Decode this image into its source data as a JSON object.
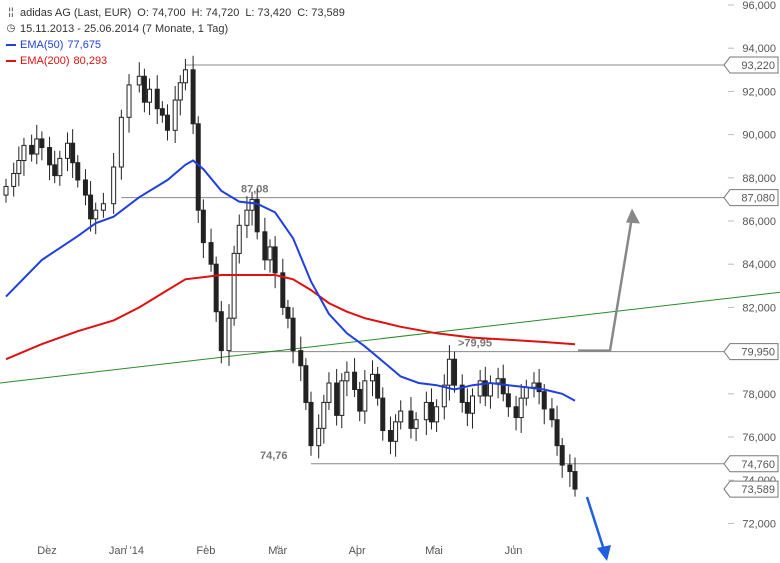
{
  "legend": {
    "instrument": "adidas AG (Last, EUR)",
    "open": "O: 74,700",
    "high": "H: 74,720",
    "low": "L: 73,420",
    "close": "C: 73,589",
    "period": "15.11.2013 - 25.06.2014 (7 Monate, 1 Tag)",
    "ema50_label": "EMA(50)",
    "ema50_value": "77,675",
    "ema200_label": "EMA(200)",
    "ema200_value": "80,293"
  },
  "colors": {
    "candle": "#222222",
    "ema50": "#1f3fe0",
    "ema200": "#e01010",
    "trend": "#2a8a2a",
    "hline": "#888888",
    "up_arrow": "#888888",
    "down_arrow": "#1f5fe0"
  },
  "chart_data": {
    "type": "candlestick",
    "y_axis": {
      "min": 71,
      "max": 96,
      "ticks": [
        72,
        74,
        76,
        78,
        80,
        82,
        84,
        86,
        88,
        90,
        92,
        94,
        96
      ],
      "tick_labels": [
        "72,000",
        "74,000",
        "76,000",
        "78,000",
        "80,000",
        "82,000",
        "84,000",
        "86,000",
        "88,000",
        "90,000",
        "92,000",
        "94,000",
        "96,000"
      ],
      "position": "right"
    },
    "x_axis": {
      "start": "2013-11-15",
      "end": "2014-06-25",
      "labels": [
        {
          "text": "Dez",
          "date": "2013-12-01"
        },
        {
          "text": "Jan '14",
          "date": "2014-01-01"
        },
        {
          "text": "Feb",
          "date": "2014-02-01"
        },
        {
          "text": "Mär",
          "date": "2014-03-01"
        },
        {
          "text": "Apr",
          "date": "2014-04-01"
        },
        {
          "text": "Mai",
          "date": "2014-05-01"
        },
        {
          "text": "Jun",
          "date": "2014-06-01"
        }
      ]
    },
    "close_series": [
      [
        "2013-11-15",
        87.6
      ],
      [
        "2013-11-18",
        88.2
      ],
      [
        "2013-11-20",
        88.8
      ],
      [
        "2013-11-22",
        89.5
      ],
      [
        "2013-11-25",
        89.1
      ],
      [
        "2013-11-27",
        89.8
      ],
      [
        "2013-11-29",
        89.4
      ],
      [
        "2013-12-02",
        88.6
      ],
      [
        "2013-12-04",
        88.1
      ],
      [
        "2013-12-06",
        88.9
      ],
      [
        "2013-12-09",
        89.6
      ],
      [
        "2013-12-11",
        88.7
      ],
      [
        "2013-12-13",
        87.9
      ],
      [
        "2013-12-16",
        87.2
      ],
      [
        "2013-12-18",
        86.1
      ],
      [
        "2013-12-20",
        86.5
      ],
      [
        "2013-12-23",
        86.8
      ],
      [
        "2013-12-27",
        88.5
      ],
      [
        "2013-12-30",
        90.8
      ],
      [
        "2014-01-02",
        92.3
      ],
      [
        "2014-01-06",
        92.7
      ],
      [
        "2014-01-08",
        91.5
      ],
      [
        "2014-01-10",
        92.1
      ],
      [
        "2014-01-13",
        91.2
      ],
      [
        "2014-01-15",
        90.9
      ],
      [
        "2014-01-17",
        90.2
      ],
      [
        "2014-01-20",
        91.6
      ],
      [
        "2014-01-22",
        92.4
      ],
      [
        "2014-01-24",
        93.0
      ],
      [
        "2014-01-27",
        90.5
      ],
      [
        "2014-01-29",
        86.5
      ],
      [
        "2014-01-31",
        85.0
      ],
      [
        "2014-02-03",
        84.0
      ],
      [
        "2014-02-05",
        81.8
      ],
      [
        "2014-02-07",
        80.0
      ],
      [
        "2014-02-10",
        81.5
      ],
      [
        "2014-02-12",
        84.5
      ],
      [
        "2014-02-14",
        85.8
      ],
      [
        "2014-02-17",
        86.5
      ],
      [
        "2014-02-19",
        87.0
      ],
      [
        "2014-02-21",
        85.5
      ],
      [
        "2014-02-24",
        84.2
      ],
      [
        "2014-02-26",
        84.8
      ],
      [
        "2014-02-28",
        83.6
      ],
      [
        "2014-03-03",
        82.0
      ],
      [
        "2014-03-05",
        81.5
      ],
      [
        "2014-03-07",
        80.0
      ],
      [
        "2014-03-10",
        79.3
      ],
      [
        "2014-03-12",
        77.6
      ],
      [
        "2014-03-14",
        75.6
      ],
      [
        "2014-03-17",
        76.4
      ],
      [
        "2014-03-19",
        77.6
      ],
      [
        "2014-03-21",
        78.5
      ],
      [
        "2014-03-24",
        77.0
      ],
      [
        "2014-03-26",
        78.6
      ],
      [
        "2014-03-28",
        79.0
      ],
      [
        "2014-03-31",
        78.2
      ],
      [
        "2014-04-02",
        77.2
      ],
      [
        "2014-04-04",
        78.6
      ],
      [
        "2014-04-07",
        78.9
      ],
      [
        "2014-04-09",
        77.8
      ],
      [
        "2014-04-11",
        76.3
      ],
      [
        "2014-04-14",
        75.8
      ],
      [
        "2014-04-16",
        76.7
      ],
      [
        "2014-04-18",
        77.2
      ],
      [
        "2014-04-22",
        76.4
      ],
      [
        "2014-04-24",
        76.8
      ],
      [
        "2014-04-28",
        77.6
      ],
      [
        "2014-04-30",
        76.7
      ],
      [
        "2014-05-02",
        77.4
      ],
      [
        "2014-05-05",
        78.4
      ],
      [
        "2014-05-07",
        79.6
      ],
      [
        "2014-05-09",
        78.4
      ],
      [
        "2014-05-12",
        77.6
      ],
      [
        "2014-05-14",
        77.1
      ],
      [
        "2014-05-16",
        77.9
      ],
      [
        "2014-05-19",
        78.6
      ],
      [
        "2014-05-21",
        77.9
      ],
      [
        "2014-05-23",
        78.5
      ],
      [
        "2014-05-26",
        78.7
      ],
      [
        "2014-05-28",
        78.0
      ],
      [
        "2014-05-30",
        77.4
      ],
      [
        "2014-06-02",
        76.9
      ],
      [
        "2014-06-04",
        77.8
      ],
      [
        "2014-06-06",
        78.3
      ],
      [
        "2014-06-09",
        78.5
      ],
      [
        "2014-06-11",
        78.1
      ],
      [
        "2014-06-13",
        77.3
      ],
      [
        "2014-06-16",
        76.8
      ],
      [
        "2014-06-18",
        75.6
      ],
      [
        "2014-06-20",
        74.7
      ],
      [
        "2014-06-23",
        74.4
      ],
      [
        "2014-06-25",
        73.589
      ]
    ],
    "ema50": [
      [
        "2013-11-15",
        82.5
      ],
      [
        "2013-11-29",
        84.2
      ],
      [
        "2013-12-13",
        85.3
      ],
      [
        "2013-12-20",
        85.9
      ],
      [
        "2013-12-27",
        86.2
      ],
      [
        "2014-01-06",
        87.1
      ],
      [
        "2014-01-17",
        87.9
      ],
      [
        "2014-01-24",
        88.6
      ],
      [
        "2014-01-27",
        88.8
      ],
      [
        "2014-01-31",
        88.4
      ],
      [
        "2014-02-07",
        87.4
      ],
      [
        "2014-02-14",
        86.9
      ],
      [
        "2014-02-21",
        86.8
      ],
      [
        "2014-02-28",
        86.4
      ],
      [
        "2014-03-07",
        85.2
      ],
      [
        "2014-03-14",
        83.2
      ],
      [
        "2014-03-21",
        81.7
      ],
      [
        "2014-03-28",
        80.8
      ],
      [
        "2014-04-04",
        80.2
      ],
      [
        "2014-04-11",
        79.5
      ],
      [
        "2014-04-18",
        78.8
      ],
      [
        "2014-04-25",
        78.5
      ],
      [
        "2014-05-02",
        78.4
      ],
      [
        "2014-05-09",
        78.2
      ],
      [
        "2014-05-16",
        78.4
      ],
      [
        "2014-05-23",
        78.5
      ],
      [
        "2014-05-30",
        78.4
      ],
      [
        "2014-06-06",
        78.3
      ],
      [
        "2014-06-13",
        78.2
      ],
      [
        "2014-06-20",
        78.0
      ],
      [
        "2014-06-25",
        77.675
      ]
    ],
    "ema200": [
      [
        "2013-11-15",
        79.6
      ],
      [
        "2013-11-29",
        80.3
      ],
      [
        "2013-12-13",
        80.9
      ],
      [
        "2013-12-27",
        81.4
      ],
      [
        "2014-01-06",
        82.0
      ],
      [
        "2014-01-17",
        82.8
      ],
      [
        "2014-01-24",
        83.3
      ],
      [
        "2014-02-07",
        83.5
      ],
      [
        "2014-02-21",
        83.5
      ],
      [
        "2014-02-28",
        83.5
      ],
      [
        "2014-03-07",
        83.3
      ],
      [
        "2014-03-14",
        82.8
      ],
      [
        "2014-03-21",
        82.2
      ],
      [
        "2014-03-28",
        81.8
      ],
      [
        "2014-04-04",
        81.5
      ],
      [
        "2014-04-18",
        81.1
      ],
      [
        "2014-05-02",
        80.8
      ],
      [
        "2014-05-16",
        80.6
      ],
      [
        "2014-05-30",
        80.5
      ],
      [
        "2014-06-13",
        80.4
      ],
      [
        "2014-06-25",
        80.293
      ]
    ],
    "trend_line": {
      "from": [
        "2013-11-15",
        78.5
      ],
      "to": [
        "2014-06-28",
        82.7
      ]
    },
    "levels": [
      {
        "value": 93.22,
        "label": "93,220",
        "from": "2014-01-24"
      },
      {
        "value": 87.08,
        "label": "87,080",
        "annotation": "87,08",
        "from": "2013-12-30"
      },
      {
        "value": 79.95,
        "label": "79,950",
        "annotation": ">79,95",
        "from": "2014-02-10"
      },
      {
        "value": 74.76,
        "label": "74,760",
        "annotation": "74,76",
        "from": "2014-03-14"
      }
    ],
    "last_price": {
      "value": 73.589,
      "label": "73,589"
    }
  }
}
